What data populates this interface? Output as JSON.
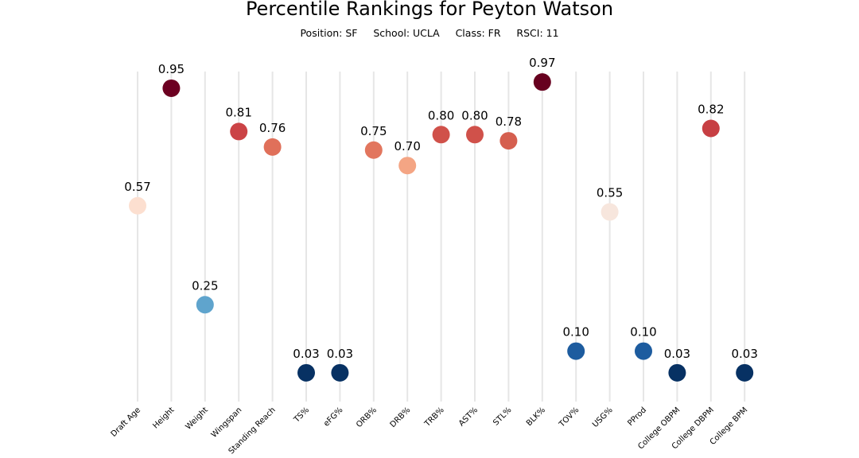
{
  "header": {
    "title": "Percentile Rankings for Peyton Watson",
    "subtitle_parts": [
      "Position: SF",
      "School: UCLA",
      "Class: FR",
      "RSCI: 11"
    ]
  },
  "chart_data": {
    "type": "scatter",
    "title": "Percentile Rankings for Peyton Watson",
    "subtitle": "Position: SF     School: UCLA     Class: FR     RSCI: 11",
    "xlabel": "",
    "ylabel": "",
    "categories": [
      "Draft Age",
      "Height",
      "Weight",
      "Wingspan",
      "Standing Reach",
      "TS%",
      "eFG%",
      "ORB%",
      "DRB%",
      "TRB%",
      "AST%",
      "STL%",
      "BLK%",
      "TOV%",
      "USG%",
      "PProd",
      "College OBPM",
      "College DBPM",
      "College BPM"
    ],
    "values": [
      0.57,
      0.95,
      0.25,
      0.81,
      0.76,
      0.03,
      0.03,
      0.75,
      0.7,
      0.8,
      0.8,
      0.78,
      0.97,
      0.1,
      0.55,
      0.1,
      0.03,
      0.82,
      0.03
    ],
    "value_labels": [
      "0.57",
      "0.95",
      "0.25",
      "0.81",
      "0.76",
      "0.03",
      "0.03",
      "0.75",
      "0.70",
      "0.80",
      "0.80",
      "0.78",
      "0.97",
      "0.10",
      "0.55",
      "0.10",
      "0.03",
      "0.82",
      "0.03"
    ],
    "colormap": "RdBu_r",
    "colors": [
      "#fcdfd0",
      "#6c0021",
      "#5fa4cd",
      "#cb4346",
      "#e0705a",
      "#073163",
      "#073163",
      "#e2765e",
      "#f4a584",
      "#d0514a",
      "#d0514a",
      "#d55f4f",
      "#67001f",
      "#1d5c9f",
      "#f7e6dd",
      "#1d5c9f",
      "#073163",
      "#c73f43",
      "#073163"
    ],
    "grid": false,
    "legend": "none"
  }
}
